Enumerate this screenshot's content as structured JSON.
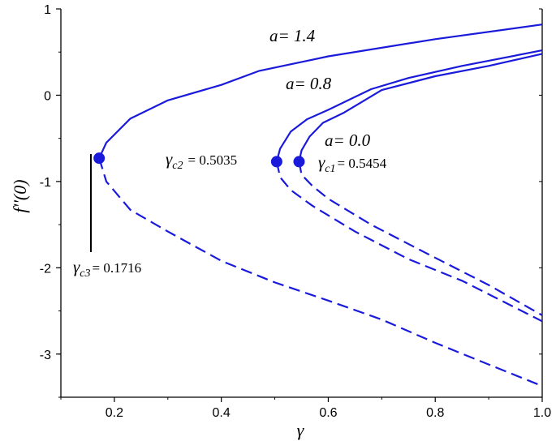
{
  "chart_data": {
    "type": "line",
    "title": "",
    "xlabel": "γ",
    "ylabel": "f''(0)",
    "xlim": [
      0.1,
      1.0
    ],
    "ylim": [
      -3.5,
      1.0
    ],
    "x_ticks": [
      0.2,
      0.4,
      0.6,
      0.8,
      1.0
    ],
    "x_tick_labels": [
      "0.2",
      "0.4",
      "0.6",
      "0.8",
      "1.0"
    ],
    "y_ticks": [
      1,
      0,
      -1,
      -2,
      -3
    ],
    "y_tick_labels": [
      "1",
      "0",
      "-1",
      "-2",
      "-3"
    ],
    "grid": false,
    "color": "#1a1adb",
    "series": [
      {
        "name": "a= 1.4",
        "upper_branch": [
          [
            0.1716,
            -0.73
          ],
          [
            0.185,
            -0.55
          ],
          [
            0.23,
            -0.27
          ],
          [
            0.3,
            -0.06
          ],
          [
            0.4,
            0.12
          ],
          [
            0.47,
            0.28
          ],
          [
            0.6,
            0.45
          ],
          [
            0.8,
            0.65
          ],
          [
            1.0,
            0.82
          ]
        ],
        "lower_branch": [
          [
            0.1716,
            -0.73
          ],
          [
            0.185,
            -1.0
          ],
          [
            0.23,
            -1.33
          ],
          [
            0.3,
            -1.58
          ],
          [
            0.4,
            -1.92
          ],
          [
            0.5,
            -2.17
          ],
          [
            0.6,
            -2.38
          ],
          [
            0.7,
            -2.6
          ],
          [
            0.8,
            -2.87
          ],
          [
            0.9,
            -3.12
          ],
          [
            1.0,
            -3.37
          ]
        ]
      },
      {
        "name": "a= 0.8",
        "upper_branch": [
          [
            0.5035,
            -0.77
          ],
          [
            0.51,
            -0.62
          ],
          [
            0.53,
            -0.42
          ],
          [
            0.56,
            -0.28
          ],
          [
            0.6,
            -0.17
          ],
          [
            0.68,
            0.07
          ],
          [
            0.75,
            0.2
          ],
          [
            0.85,
            0.34
          ],
          [
            1.0,
            0.52
          ]
        ],
        "lower_branch": [
          [
            0.5035,
            -0.77
          ],
          [
            0.51,
            -0.95
          ],
          [
            0.53,
            -1.1
          ],
          [
            0.57,
            -1.28
          ],
          [
            0.65,
            -1.58
          ],
          [
            0.75,
            -1.9
          ],
          [
            0.85,
            -2.15
          ],
          [
            1.0,
            -2.62
          ]
        ]
      },
      {
        "name": "a= 0.0",
        "upper_branch": [
          [
            0.5454,
            -0.77
          ],
          [
            0.55,
            -0.64
          ],
          [
            0.565,
            -0.48
          ],
          [
            0.59,
            -0.32
          ],
          [
            0.63,
            -0.2
          ],
          [
            0.7,
            0.06
          ],
          [
            0.8,
            0.22
          ],
          [
            0.9,
            0.34
          ],
          [
            1.0,
            0.48
          ]
        ],
        "lower_branch": [
          [
            0.5454,
            -0.77
          ],
          [
            0.55,
            -0.92
          ],
          [
            0.57,
            -1.05
          ],
          [
            0.6,
            -1.2
          ],
          [
            0.68,
            -1.5
          ],
          [
            0.78,
            -1.82
          ],
          [
            0.9,
            -2.2
          ],
          [
            1.0,
            -2.55
          ]
        ]
      }
    ],
    "critical_points": [
      {
        "name": "γc3",
        "x": 0.1716,
        "y": -0.73
      },
      {
        "name": "γc2",
        "x": 0.5035,
        "y": -0.77
      },
      {
        "name": "γc1",
        "x": 0.5454,
        "y": -0.77
      }
    ],
    "annotations": {
      "a14": "a= 1.4",
      "a08": "a= 0.8",
      "a00": "a= 0.0",
      "gc1_val": "= 0.5454",
      "gc2_val": "= 0.5035",
      "gc3_val": "= 0.1716"
    }
  }
}
